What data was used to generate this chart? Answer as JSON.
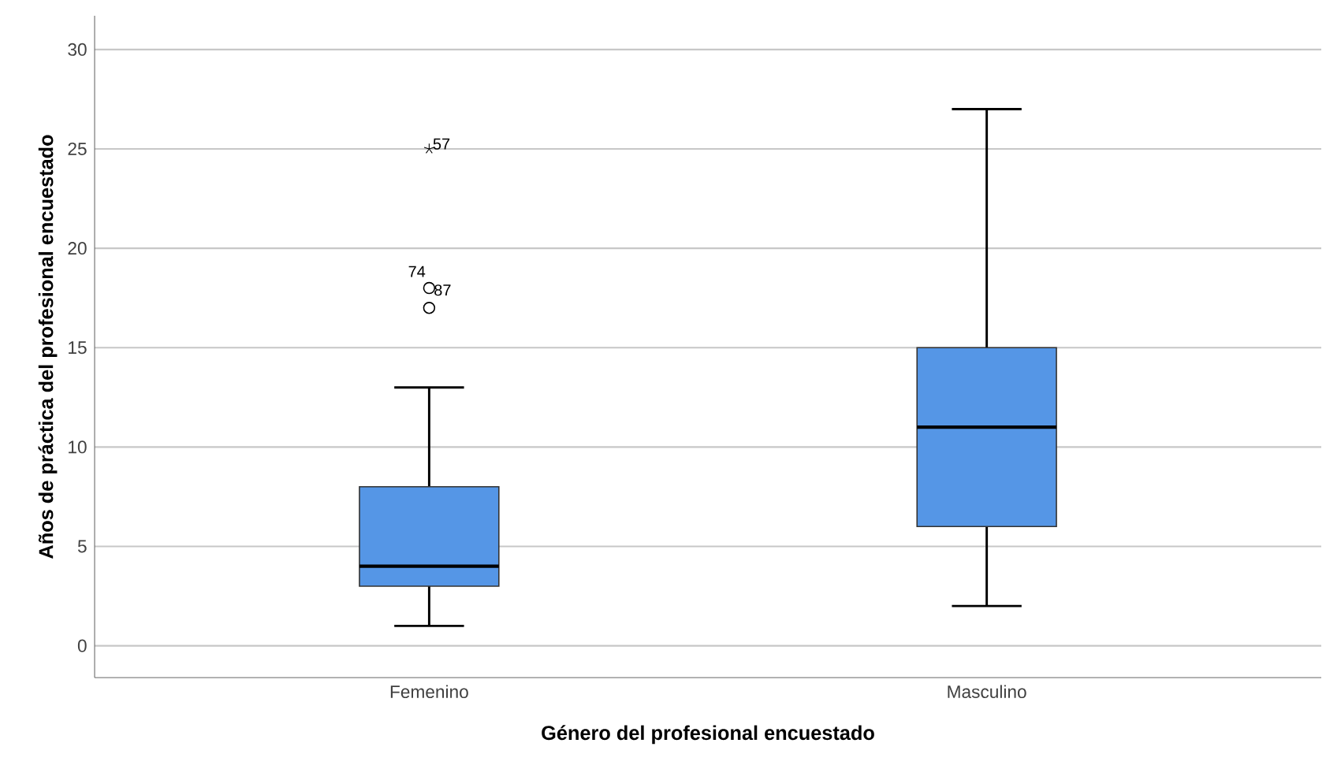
{
  "chart_data": {
    "type": "box",
    "xlabel": "Género del profesional encuestado",
    "ylabel": "Años de práctica del profesional encuestado",
    "categories": [
      "Femenino",
      "Masculino"
    ],
    "boxes": [
      {
        "low": 1,
        "q1": 3,
        "median": 4,
        "q3": 8,
        "high": 13,
        "outliers": [
          17,
          18,
          25
        ]
      },
      {
        "low": 2,
        "q1": 6,
        "median": 11,
        "q3": 15,
        "high": 27
      }
    ],
    "color": "#5596e6",
    "ylim": [
      -1.6,
      31.7
    ],
    "yticks": [
      0,
      5,
      10,
      15,
      20,
      25,
      30
    ],
    "grid": "y",
    "annotations": [
      "57",
      "87",
      "74"
    ]
  }
}
